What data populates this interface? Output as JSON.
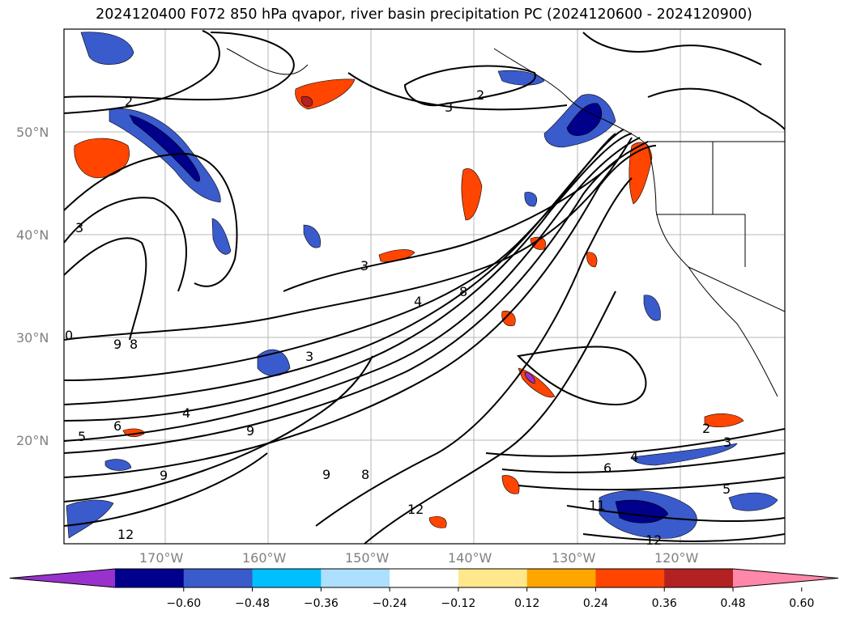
{
  "title": "2024120400 F072 850 hPa qvapor, river basin precipitation PC (2024120600 - 2024120900)",
  "map": {
    "lat_labels": [
      "50°N",
      "40°N",
      "30°N",
      "20°N"
    ],
    "lon_labels": [
      "170°W",
      "160°W",
      "150°W",
      "140°W",
      "130°W",
      "120°W"
    ],
    "contour_labels": [
      {
        "text": "2",
        "id": "c1"
      },
      {
        "text": "3",
        "id": "c2"
      },
      {
        "text": "2",
        "id": "c3"
      },
      {
        "text": "3",
        "id": "c4"
      },
      {
        "text": "3",
        "id": "c5"
      },
      {
        "text": "4",
        "id": "c6"
      },
      {
        "text": "8",
        "id": "c7"
      },
      {
        "text": "3",
        "id": "c8"
      },
      {
        "text": "9",
        "id": "c9"
      },
      {
        "text": "8",
        "id": "c10"
      },
      {
        "text": "6",
        "id": "c11"
      },
      {
        "text": "4",
        "id": "c12"
      },
      {
        "text": "9",
        "id": "c13"
      },
      {
        "text": "5",
        "id": "c14"
      },
      {
        "text": "9",
        "id": "c15"
      },
      {
        "text": "8",
        "id": "c16"
      },
      {
        "text": "12",
        "id": "c17"
      },
      {
        "text": "6",
        "id": "c18"
      },
      {
        "text": "4",
        "id": "c19"
      },
      {
        "text": "2",
        "id": "c20"
      },
      {
        "text": "3",
        "id": "c21"
      },
      {
        "text": "5",
        "id": "c22"
      },
      {
        "text": "11",
        "id": "c23"
      },
      {
        "text": "12",
        "id": "c24"
      },
      {
        "text": "12",
        "id": "c25"
      },
      {
        "text": "9",
        "id": "c26"
      },
      {
        "text": "0",
        "id": "c27"
      }
    ],
    "colors": {
      "neg_strong_purple": "#9932CC",
      "neg_navy": "#00008B",
      "neg_royal": "#3A5BCC",
      "neg_sky": "#00BFFF",
      "neg_light": "#ADDFFF",
      "pos_yellow": "#FFE88C",
      "pos_orange": "#FFA500",
      "pos_redorange": "#FF4500",
      "pos_darkred": "#B22222",
      "pos_pink": "#FF88AA"
    }
  },
  "colorbar": {
    "ticks": [
      "−0.60",
      "−0.48",
      "−0.36",
      "−0.24",
      "−0.12",
      "0.12",
      "0.24",
      "0.36",
      "0.48",
      "0.60"
    ],
    "colors": [
      "#9932CC",
      "#00008B",
      "#3A5BCC",
      "#00BFFF",
      "#ADDFFF",
      "#FFFFFF",
      "#FFE88C",
      "#FFA500",
      "#FF4500",
      "#B22222",
      "#FF88AA"
    ]
  }
}
